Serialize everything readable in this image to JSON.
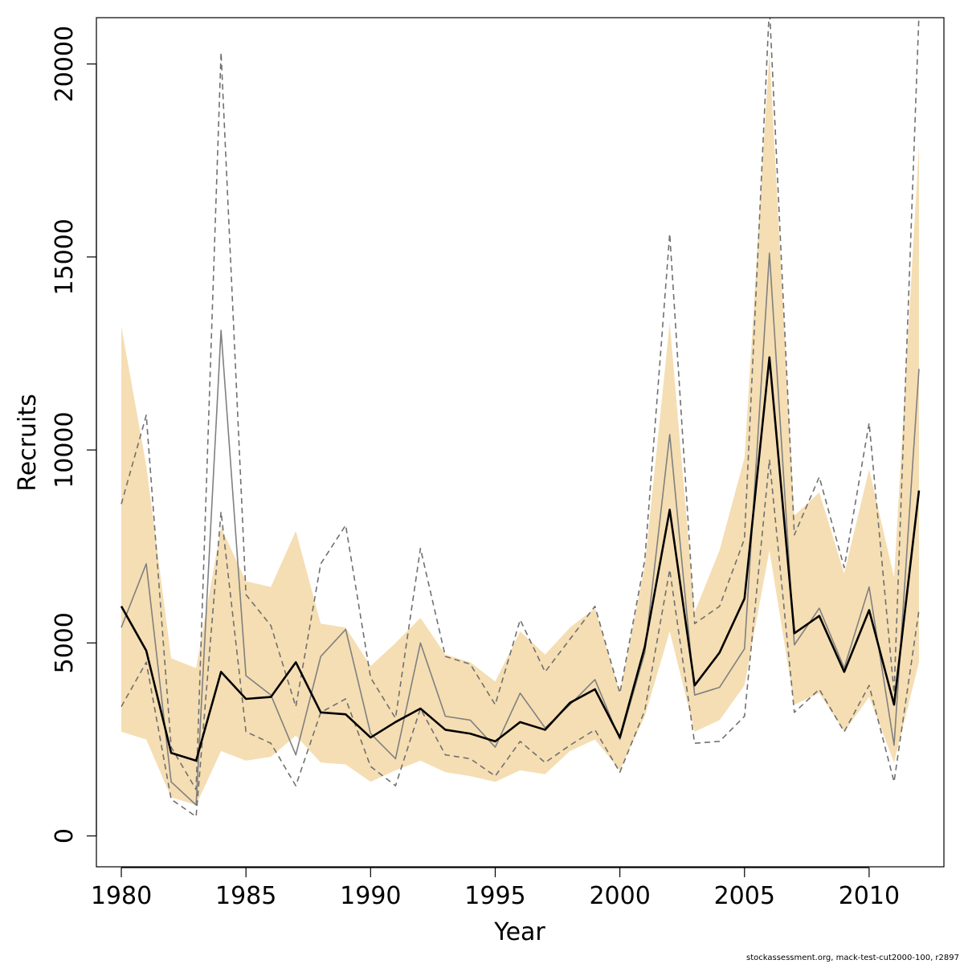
{
  "chart_data": {
    "type": "line",
    "title": "",
    "xlabel": "Year",
    "ylabel": "Recruits",
    "xlim": [
      1979,
      2013
    ],
    "ylim": [
      -800,
      21200
    ],
    "x_ticks": [
      1980,
      1985,
      1990,
      1995,
      2000,
      2005,
      2010
    ],
    "y_ticks": [
      0,
      5000,
      10000,
      15000,
      20000
    ],
    "x": [
      1980,
      1981,
      1982,
      1983,
      1984,
      1985,
      1986,
      1987,
      1988,
      1989,
      1990,
      1991,
      1992,
      1993,
      1994,
      1995,
      1996,
      1997,
      1998,
      1999,
      2000,
      2001,
      2002,
      2003,
      2004,
      2005,
      2006,
      2007,
      2008,
      2009,
      2010,
      2011,
      2012
    ],
    "band": {
      "color": "#F5DEB3",
      "upper": [
        13200,
        9600,
        4600,
        4350,
        8000,
        6600,
        6450,
        7900,
        5500,
        5400,
        4400,
        5000,
        5650,
        4700,
        4500,
        4000,
        5300,
        4700,
        5400,
        5900,
        3700,
        7000,
        13300,
        5800,
        7400,
        9800,
        20300,
        8300,
        8900,
        6800,
        9500,
        6700,
        17900
      ],
      "lower": [
        2700,
        2500,
        1000,
        800,
        2200,
        1950,
        2050,
        2600,
        1900,
        1850,
        1400,
        1700,
        1950,
        1650,
        1550,
        1400,
        1700,
        1600,
        2200,
        2500,
        1700,
        3100,
        5300,
        2700,
        3000,
        3900,
        7400,
        3400,
        3700,
        2700,
        3600,
        1900,
        4500
      ]
    },
    "series": [
      {
        "values": [
          5950,
          4800,
          2150,
          1950,
          4250,
          3550,
          3600,
          4500,
          3200,
          3150,
          2550,
          2950,
          3300,
          2750,
          2650,
          2450,
          2950,
          2750,
          3450,
          3800,
          2550,
          4900,
          8450,
          3900,
          4750,
          6150,
          12400,
          5250,
          5700,
          4250,
          5850,
          3400,
          8950
        ],
        "color": "#000000",
        "width": 2.6,
        "dash": ""
      },
      {
        "values": [
          5400,
          7050,
          1400,
          800,
          13100,
          4150,
          3650,
          2100,
          4650,
          5350,
          2650,
          2000,
          5000,
          3100,
          3000,
          2300,
          3700,
          2800,
          3400,
          4050,
          2500,
          4750,
          10400,
          3650,
          3850,
          4850,
          15100,
          4950,
          5900,
          4350,
          6450,
          2350,
          12100
        ],
        "color": "#808080",
        "width": 1.6,
        "dash": ""
      },
      {
        "values": [
          8600,
          10900,
          2300,
          1200,
          20300,
          6250,
          5450,
          3350,
          7050,
          8050,
          4100,
          3050,
          7450,
          4650,
          4450,
          3400,
          5600,
          4250,
          5100,
          5950,
          3700,
          7150,
          15600,
          5500,
          5950,
          7700,
          21500,
          7800,
          9300,
          6950,
          10700,
          3700,
          21300
        ],
        "color": "#707070",
        "width": 1.6,
        "dash": "7,5"
      },
      {
        "values": [
          3350,
          4500,
          950,
          500,
          8400,
          2700,
          2400,
          1300,
          3200,
          3550,
          1800,
          1300,
          3300,
          2100,
          2000,
          1550,
          2450,
          1900,
          2350,
          2750,
          1650,
          3250,
          6900,
          2400,
          2450,
          3100,
          9750,
          3200,
          3800,
          2700,
          3900,
          1400,
          5850
        ],
        "color": "#707070",
        "width": 1.6,
        "dash": "7,5"
      }
    ]
  },
  "footer": "stockassessment.org, mack-test-cut2000-100, r2897"
}
